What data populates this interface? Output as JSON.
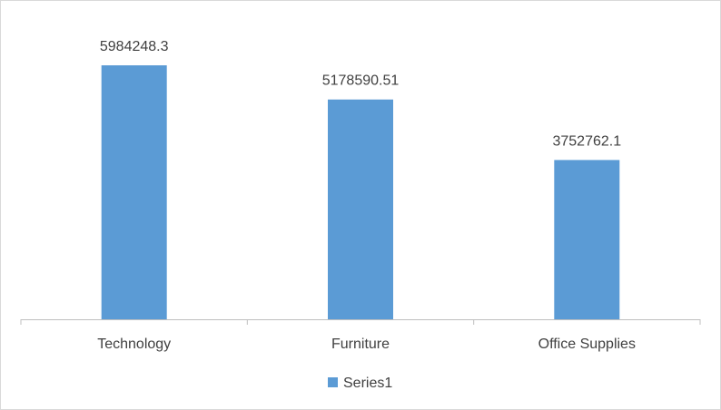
{
  "chart_data": {
    "type": "bar",
    "title": "",
    "xlabel": "",
    "ylabel": "",
    "categories": [
      "Technology",
      "Furniture",
      "Office Supplies"
    ],
    "series": [
      {
        "name": "Series1",
        "values": [
          5984248.3,
          5178590.51,
          3752762.1
        ],
        "data_labels": [
          "5984248.3",
          "5178590.51",
          "3752762.1"
        ]
      }
    ],
    "ylim": [
      0,
      7000000
    ],
    "grid": false,
    "legend_position": "bottom"
  },
  "colors": {
    "bar": "#5B9BD5",
    "axis": "#bfbfbf",
    "text": "#404040"
  }
}
